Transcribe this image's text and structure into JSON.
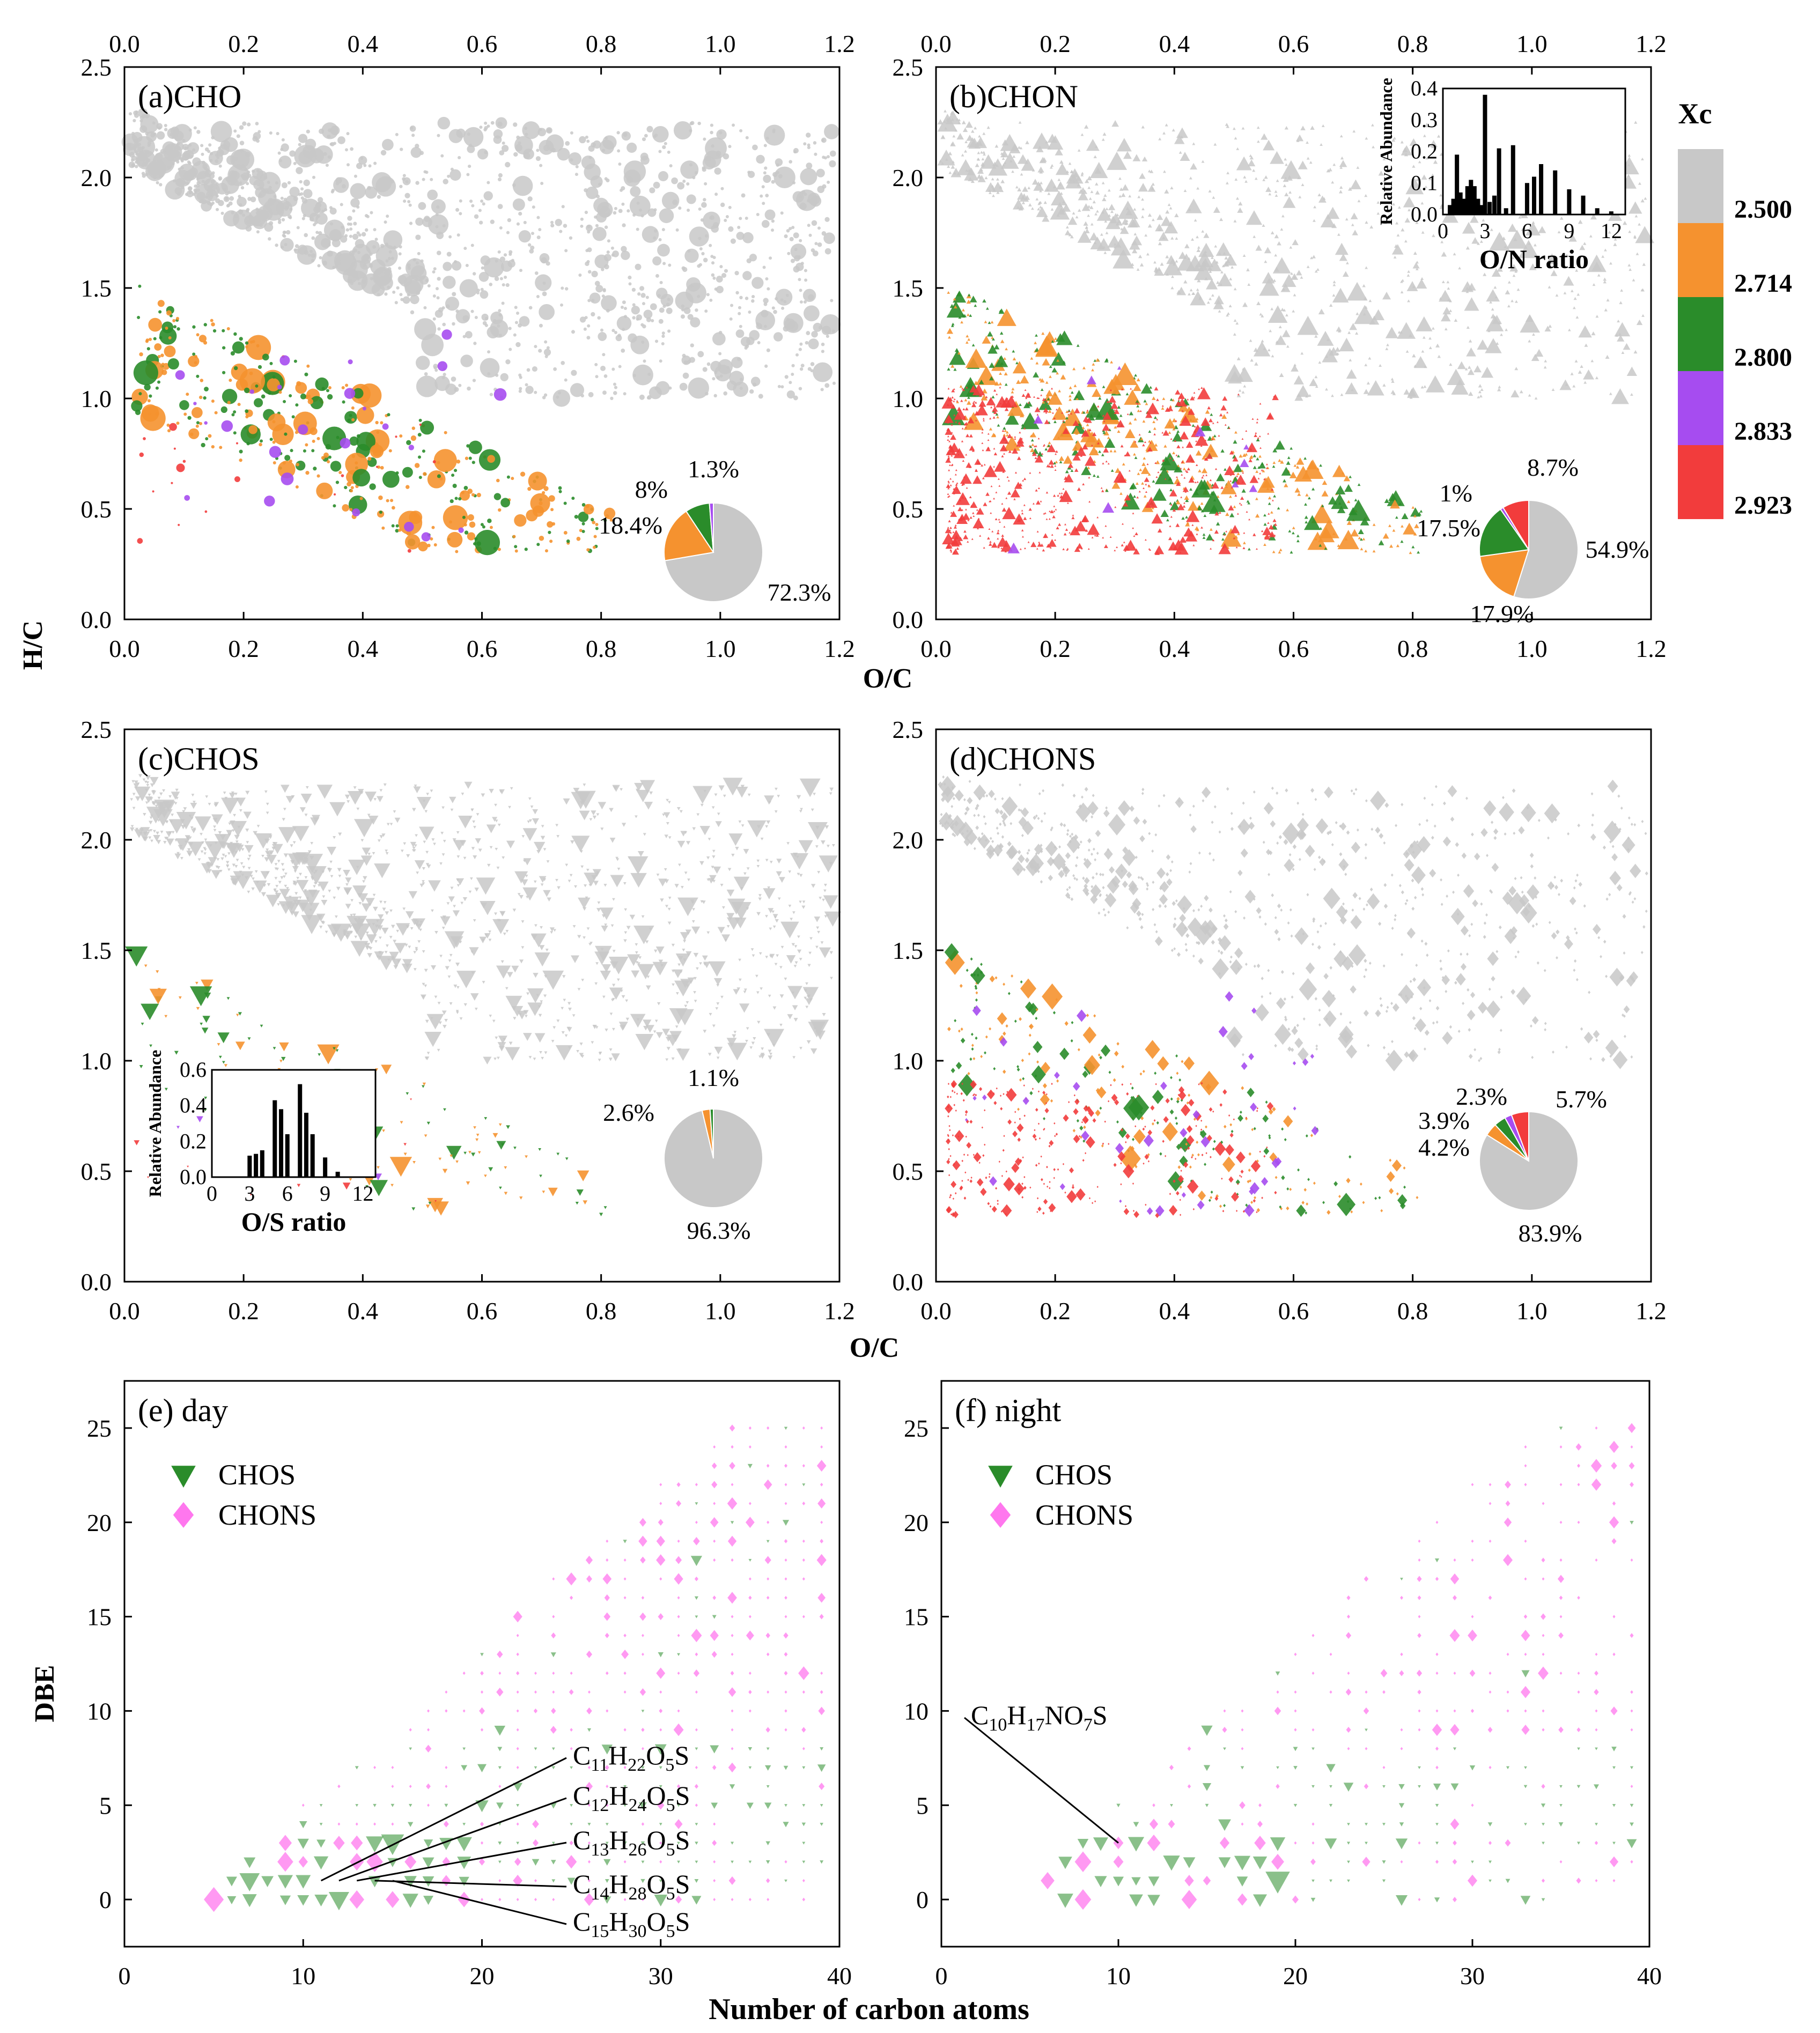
{
  "figure": {
    "shared_labels": {
      "y_top": "H/C",
      "x_top": "O/C",
      "x_mid": "O/C",
      "y_bottom": "DBE",
      "x_bottom": "Number of carbon atoms"
    },
    "colorbar": {
      "title": "Xc",
      "levels": [
        "2.500",
        "2.714",
        "2.800",
        "2.833",
        "2.923"
      ],
      "colors": [
        "#c8c8c8",
        "#f5922f",
        "#2a8c2a",
        "#a64cf0",
        "#f23c3c"
      ]
    }
  },
  "chart_data": [
    {
      "id": "a",
      "type": "scatter",
      "title": "(a)CHO",
      "xlabel": "O/C",
      "ylabel": "H/C",
      "xlim": [
        0,
        1.2
      ],
      "ylim": [
        0,
        2.5
      ],
      "xticks": [
        "0.0",
        "0.2",
        "0.4",
        "0.6",
        "0.8",
        "1.0",
        "1.2"
      ],
      "yticks": [
        "0.0",
        "0.5",
        "1.0",
        "1.5",
        "2.0",
        "2.5"
      ],
      "marker": "circle",
      "pie": {
        "values": [
          72.3,
          18.4,
          8.0,
          1.3
        ],
        "labels": [
          "72.3%",
          "18.4%",
          "8%",
          "1.3%"
        ],
        "colors": [
          "#c8c8c8",
          "#f5922f",
          "#2a8c2a",
          "#a64cf0"
        ]
      }
    },
    {
      "id": "b",
      "type": "scatter",
      "title": "(b)CHON",
      "xlabel": "O/C",
      "ylabel": "H/C",
      "xlim": [
        0,
        1.2
      ],
      "ylim": [
        0,
        2.5
      ],
      "xticks": [
        "0.0",
        "0.2",
        "0.4",
        "0.6",
        "0.8",
        "1.0",
        "1.2"
      ],
      "yticks": [
        "0.0",
        "0.5",
        "1.0",
        "1.5",
        "2.0",
        "2.5"
      ],
      "marker": "triangle-up",
      "pie": {
        "values": [
          54.9,
          17.9,
          17.5,
          1.0,
          8.7
        ],
        "labels": [
          "54.9%",
          "17.9%",
          "17.5%",
          "1%",
          "8.7%"
        ],
        "colors": [
          "#c8c8c8",
          "#f5922f",
          "#2a8c2a",
          "#a64cf0",
          "#f23c3c"
        ]
      },
      "inset": {
        "type": "bar",
        "xlabel": "O/N ratio",
        "ylabel": "Relative Abundance",
        "xticks": [
          "0",
          "3",
          "6",
          "9",
          "12"
        ],
        "yticks": [
          "0.0",
          "0.1",
          "0.2",
          "0.3",
          "0.4"
        ],
        "xlim": [
          0,
          13
        ],
        "ylim": [
          0,
          0.4
        ],
        "x": [
          0.5,
          0.75,
          1,
          1.25,
          1.5,
          1.75,
          2,
          2.25,
          2.5,
          2.75,
          3,
          3.33,
          3.67,
          4,
          4.5,
          5,
          6,
          6.5,
          7,
          8,
          9,
          10,
          11,
          12
        ],
        "values": [
          0.03,
          0.05,
          0.19,
          0.07,
          0.05,
          0.09,
          0.11,
          0.09,
          0.05,
          0.03,
          0.38,
          0.04,
          0.06,
          0.21,
          0.02,
          0.22,
          0.1,
          0.12,
          0.16,
          0.14,
          0.08,
          0.06,
          0.02,
          0.01
        ]
      }
    },
    {
      "id": "c",
      "type": "scatter",
      "title": "(c)CHOS",
      "xlabel": "O/C",
      "ylabel": "H/C",
      "xlim": [
        0,
        1.2
      ],
      "ylim": [
        0,
        2.5
      ],
      "xticks": [
        "0.0",
        "0.2",
        "0.4",
        "0.6",
        "0.8",
        "1.0",
        "1.2"
      ],
      "yticks": [
        "0.0",
        "0.5",
        "1.0",
        "1.5",
        "2.0",
        "2.5"
      ],
      "marker": "triangle-down",
      "pie": {
        "values": [
          96.3,
          2.6,
          1.1
        ],
        "labels": [
          "96.3%",
          "2.6%",
          "1.1%"
        ],
        "colors": [
          "#c8c8c8",
          "#f5922f",
          "#2a8c2a"
        ]
      },
      "inset": {
        "type": "bar",
        "xlabel": "O/S ratio",
        "ylabel": "Relative Abundance",
        "xticks": [
          "0",
          "3",
          "6",
          "9",
          "12"
        ],
        "yticks": [
          "0.0",
          "0.2",
          "0.4",
          "0.6"
        ],
        "xlim": [
          0,
          13
        ],
        "ylim": [
          0,
          0.6
        ],
        "x": [
          3,
          3.5,
          4,
          5,
          5.5,
          6,
          7,
          7.5,
          8,
          9,
          10
        ],
        "values": [
          0.12,
          0.13,
          0.15,
          0.43,
          0.38,
          0.24,
          0.52,
          0.36,
          0.24,
          0.11,
          0.03
        ]
      }
    },
    {
      "id": "d",
      "type": "scatter",
      "title": "(d)CHONS",
      "xlabel": "O/C",
      "ylabel": "H/C",
      "xlim": [
        0,
        1.2
      ],
      "ylim": [
        0,
        2.5
      ],
      "xticks": [
        "0.0",
        "0.2",
        "0.4",
        "0.6",
        "0.8",
        "1.0",
        "1.2"
      ],
      "yticks": [
        "0.0",
        "0.5",
        "1.0",
        "1.5",
        "2.0",
        "2.5"
      ],
      "marker": "diamond",
      "pie": {
        "values": [
          83.9,
          4.2,
          3.9,
          2.3,
          5.7
        ],
        "labels": [
          "83.9%",
          "4.2%",
          "3.9%",
          "2.3%",
          "5.7%"
        ],
        "colors": [
          "#c8c8c8",
          "#f5922f",
          "#2a8c2a",
          "#a64cf0",
          "#f23c3c"
        ]
      }
    },
    {
      "id": "e",
      "type": "scatter",
      "title": "(e) day",
      "xlabel": "Number of carbon atoms",
      "ylabel": "DBE",
      "xlim": [
        0,
        40
      ],
      "ylim": [
        -2.5,
        27.5
      ],
      "xticks": [
        "0",
        "10",
        "20",
        "30",
        "40"
      ],
      "yticks": [
        "0",
        "5",
        "10",
        "15",
        "20",
        "25"
      ],
      "legend": [
        {
          "name": "CHOS",
          "color": "#2a8c2a",
          "marker": "triangle-down"
        },
        {
          "name": "CHONS",
          "color": "#ff77ee",
          "marker": "diamond"
        }
      ],
      "annotations": [
        {
          "base": "C",
          "n1": "11",
          "m1": "H",
          "n2": "22",
          "m2": "O",
          "n3": "5",
          "tail": "S",
          "x": 11,
          "y": 1
        },
        {
          "base": "C",
          "n1": "12",
          "m1": "H",
          "n2": "24",
          "m2": "O",
          "n3": "5",
          "tail": "S",
          "x": 12,
          "y": 1
        },
        {
          "base": "C",
          "n1": "13",
          "m1": "H",
          "n2": "26",
          "m2": "O",
          "n3": "5",
          "tail": "S",
          "x": 13,
          "y": 1
        },
        {
          "base": "C",
          "n1": "14",
          "m1": "H",
          "n2": "28",
          "m2": "O",
          "n3": "5",
          "tail": "S",
          "x": 14,
          "y": 1
        },
        {
          "base": "C",
          "n1": "15",
          "m1": "H",
          "n2": "30",
          "m2": "O",
          "n3": "5",
          "tail": "S",
          "x": 15,
          "y": 1
        }
      ]
    },
    {
      "id": "f",
      "type": "scatter",
      "title": "(f) night",
      "xlabel": "Number of carbon atoms",
      "ylabel": "DBE",
      "xlim": [
        0,
        40
      ],
      "ylim": [
        -2.5,
        27.5
      ],
      "xticks": [
        "0",
        "10",
        "20",
        "30",
        "40"
      ],
      "yticks": [
        "0",
        "5",
        "10",
        "15",
        "20",
        "25"
      ],
      "legend": [
        {
          "name": "CHOS",
          "color": "#2a8c2a",
          "marker": "triangle-down"
        },
        {
          "name": "CHONS",
          "color": "#ff77ee",
          "marker": "diamond"
        }
      ],
      "annotations": [
        {
          "base": "C",
          "n1": "10",
          "m1": "H",
          "n2": "17",
          "m2": "NO",
          "n3": "7",
          "tail": "S",
          "x": 10,
          "y": 3
        }
      ]
    }
  ]
}
